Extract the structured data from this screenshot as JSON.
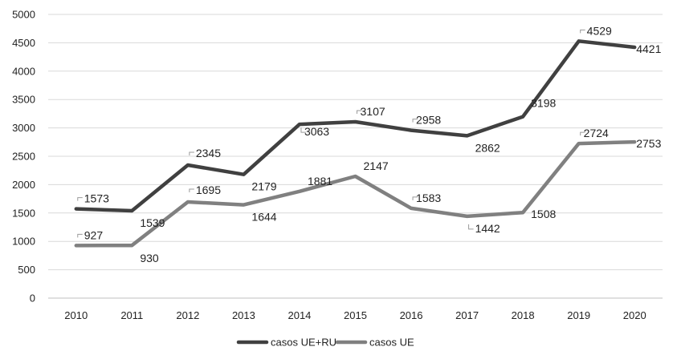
{
  "chart_data": {
    "type": "line",
    "title": "",
    "xlabel": "",
    "ylabel": "",
    "categories": [
      "2010",
      "2011",
      "2012",
      "2013",
      "2014",
      "2015",
      "2016",
      "2017",
      "2018",
      "2019",
      "2020"
    ],
    "ylim": [
      0,
      5000
    ],
    "yticks": [
      0,
      500,
      1000,
      1500,
      2000,
      2500,
      3000,
      3500,
      4000,
      4500,
      5000
    ],
    "grid": true,
    "legend_position": "bottom",
    "series": [
      {
        "name": "casos UE+RU",
        "color": "#404040",
        "values": [
          1573,
          1539,
          2345,
          2179,
          3063,
          3107,
          2958,
          2862,
          3198,
          4529,
          4421
        ],
        "labels": [
          "1573",
          "1539",
          "2345",
          "2179",
          "3063",
          "3107",
          "2958",
          "2862",
          "3198",
          "4529",
          "4421"
        ]
      },
      {
        "name": "casos UE",
        "color": "#808080",
        "values": [
          927,
          930,
          1695,
          1644,
          1881,
          2147,
          1583,
          1442,
          1508,
          2724,
          2753
        ],
        "labels": [
          "927",
          "930",
          "1695",
          "1644",
          "1881",
          "2147",
          "1583",
          "1442",
          "1508",
          "2724",
          "2753"
        ]
      }
    ]
  }
}
